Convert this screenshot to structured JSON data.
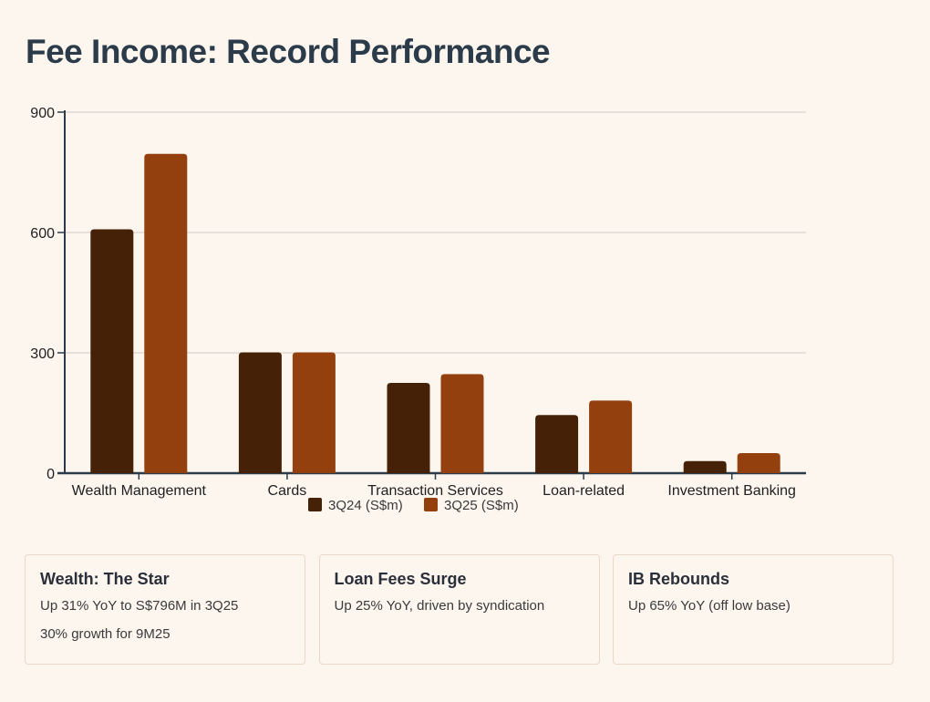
{
  "title": "Fee Income: Record Performance",
  "chart_data": {
    "type": "bar",
    "categories": [
      "Wealth Management",
      "Cards",
      "Transaction Services",
      "Loan-related",
      "Investment Banking"
    ],
    "series": [
      {
        "name": "3Q24 (S$m)",
        "color": "#452108",
        "values": [
          608,
          301,
          225,
          145,
          30
        ]
      },
      {
        "name": "3Q25 (S$m)",
        "color": "#93400e",
        "values": [
          796,
          301,
          247,
          181,
          50
        ]
      }
    ],
    "yticks": [
      0,
      300,
      600,
      900
    ],
    "ylim": [
      0,
      900
    ],
    "legend_position": "bottom-center",
    "grid": true
  },
  "cards": [
    {
      "title": "Wealth: The Star",
      "lines": [
        "Up 31% YoY to S$796M in 3Q25",
        "30% growth for 9M25"
      ]
    },
    {
      "title": "Loan Fees Surge",
      "lines": [
        "Up 25% YoY, driven by syndication"
      ]
    },
    {
      "title": "IB Rebounds",
      "lines": [
        "Up 65% YoY (off low base)"
      ]
    }
  ]
}
